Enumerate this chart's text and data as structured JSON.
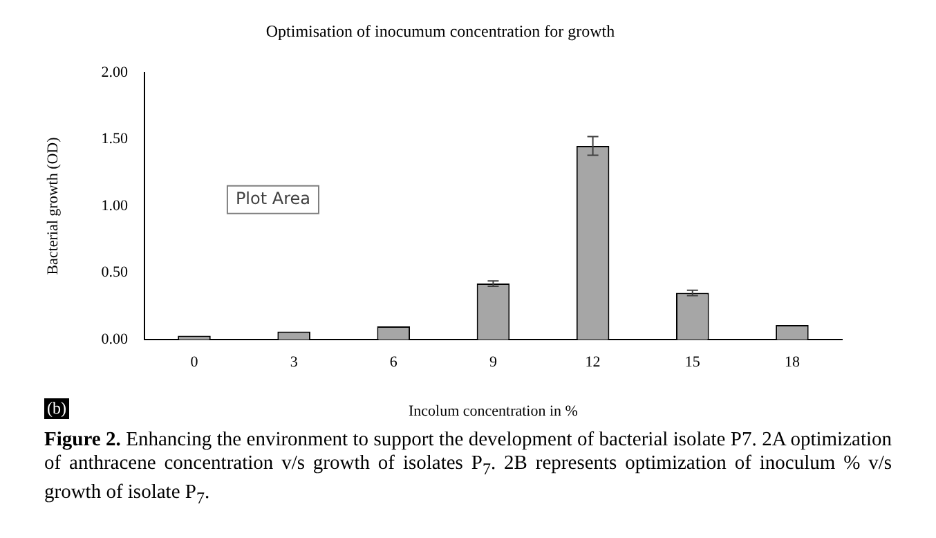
{
  "chart_data": {
    "type": "bar",
    "title": "Optimisation of inocumum concentration for growth",
    "xlabel": "Incolum concentration in %",
    "ylabel": "Bacterial growth (OD)",
    "categories": [
      "0",
      "3",
      "6",
      "9",
      "12",
      "15",
      "18"
    ],
    "values": [
      0.03,
      0.06,
      0.1,
      0.42,
      1.45,
      0.35,
      0.11
    ],
    "errors": [
      null,
      null,
      null,
      0.02,
      0.07,
      0.02,
      null
    ],
    "color": "#a6a6a6",
    "ylim": [
      0,
      2
    ],
    "yticks": [
      {
        "value": 0,
        "label": "0.00"
      },
      {
        "value": 0.5,
        "label": "0.50"
      },
      {
        "value": 1,
        "label": "1.00"
      },
      {
        "value": 1.5,
        "label": "1.50"
      },
      {
        "value": 2,
        "label": "2.00"
      }
    ],
    "grid": false,
    "annotations": [
      "Plot Area",
      "(b)",
      "Figure 2. Enhancing the environment to support the development of bacterial isolate P7. 2A optimization of anthracene concentration v/s growth of isolates P$_{7}$. 2B represents optimization of inoculum % v/s growth of isolate P$_{7}$."
    ]
  }
}
